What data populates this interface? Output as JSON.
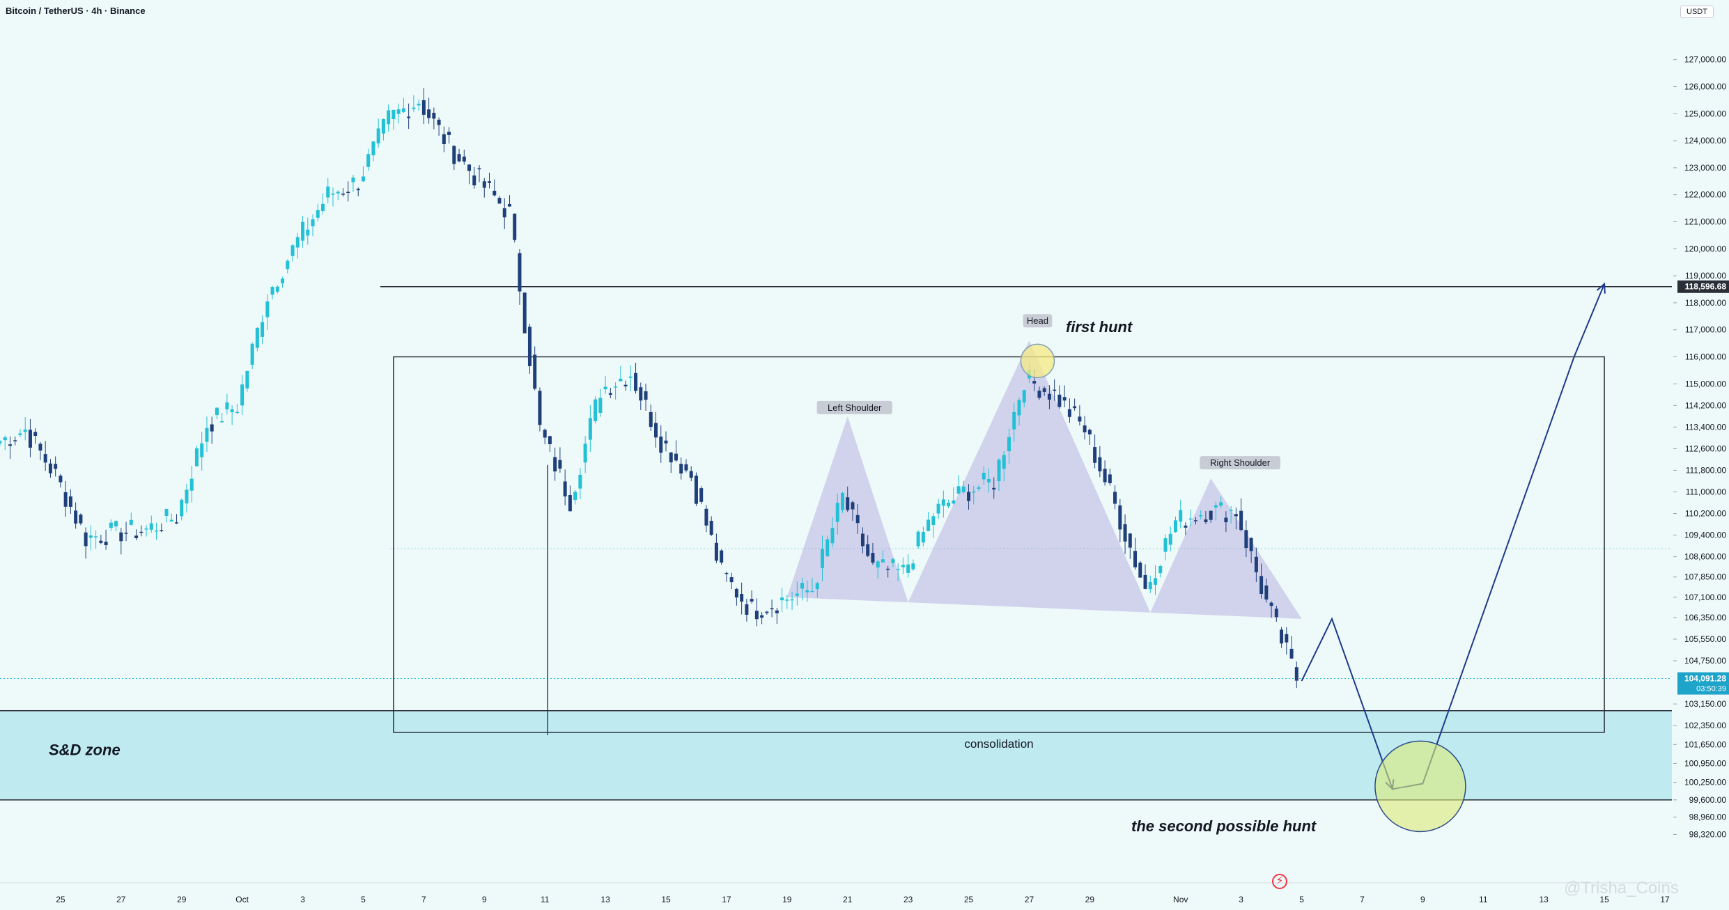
{
  "header": {
    "title": "Bitcoin / TetherUS · 4h · Binance",
    "currency": "USDT"
  },
  "watermark": "@Trisha_Coins",
  "chart_data": {
    "type": "candlestick",
    "title": "Bitcoin / TetherUS · 4h · Binance",
    "y_axis": {
      "range": [
        98320,
        127800
      ],
      "ticks": [
        127000,
        126000,
        125000,
        124000,
        123000,
        122000,
        121000,
        120000,
        119000,
        118000,
        117000,
        116000,
        115000,
        114200,
        113400,
        112600,
        111800,
        111000,
        110200,
        109400,
        108600,
        107850,
        107100,
        106350,
        105550,
        104750,
        103150,
        102350,
        101650,
        100950,
        100250,
        99600,
        98960,
        98320
      ],
      "tick_labels": [
        "127,000.00",
        "126,000.00",
        "125,000.00",
        "124,000.00",
        "123,000.00",
        "122,000.00",
        "121,000.00",
        "120,000.00",
        "119,000.00",
        "118,000.00",
        "117,000.00",
        "116,000.00",
        "115,000.00",
        "114,200.00",
        "113,400.00",
        "112,600.00",
        "111,800.00",
        "111,000.00",
        "110,200.00",
        "109,400.00",
        "108,600.00",
        "107,850.00",
        "107,100.00",
        "106,350.00",
        "105,550.00",
        "104,750.00",
        "103,150.00",
        "102,350.00",
        "101,650.00",
        "100,950.00",
        "100,250.00",
        "99,600.00",
        "98,960.00",
        "98,320.00"
      ]
    },
    "x_axis": {
      "range": [
        "2025-09-23",
        "2025-11-17"
      ],
      "ticks": [
        "2025-09-25",
        "2025-09-27",
        "2025-09-29",
        "2025-10-01",
        "2025-10-03",
        "2025-10-05",
        "2025-10-07",
        "2025-10-09",
        "2025-10-11",
        "2025-10-13",
        "2025-10-15",
        "2025-10-17",
        "2025-10-19",
        "2025-10-21",
        "2025-10-23",
        "2025-10-25",
        "2025-10-27",
        "2025-10-29",
        "2025-11-01",
        "2025-11-03",
        "2025-11-05",
        "2025-11-07",
        "2025-11-09",
        "2025-11-11",
        "2025-11-13",
        "2025-11-15",
        "2025-11-17"
      ],
      "tick_labels": [
        "25",
        "27",
        "29",
        "Oct",
        "3",
        "5",
        "7",
        "9",
        "11",
        "13",
        "15",
        "17",
        "19",
        "21",
        "23",
        "25",
        "27",
        "29",
        "Nov",
        "3",
        "5",
        "7",
        "9",
        "11",
        "13",
        "15",
        "17"
      ]
    },
    "price_path": [
      [
        "2025-09-23",
        112800
      ],
      [
        "2025-09-24",
        113300
      ],
      [
        "2025-09-25",
        111600
      ],
      [
        "2025-09-26",
        109300
      ],
      [
        "2025-09-27",
        109500
      ],
      [
        "2025-09-28",
        109600
      ],
      [
        "2025-09-29",
        110100
      ],
      [
        "2025-09-30",
        113500
      ],
      [
        "2025-10-01",
        114200
      ],
      [
        "2025-10-02",
        118300
      ],
      [
        "2025-10-03",
        120300
      ],
      [
        "2025-10-04",
        122000
      ],
      [
        "2025-10-05",
        122500
      ],
      [
        "2025-10-06",
        124800
      ],
      [
        "2025-10-07",
        125500
      ],
      [
        "2025-10-08",
        123800
      ],
      [
        "2025-10-09",
        122500
      ],
      [
        "2025-10-10",
        121300
      ],
      [
        "2025-10-11",
        113300
      ],
      [
        "2025-10-12",
        110700
      ],
      [
        "2025-10-13",
        114800
      ],
      [
        "2025-10-14",
        115400
      ],
      [
        "2025-10-15",
        112900
      ],
      [
        "2025-10-16",
        111600
      ],
      [
        "2025-10-17",
        108000
      ],
      [
        "2025-10-18",
        106600
      ],
      [
        "2025-10-19",
        107000
      ],
      [
        "2025-10-20",
        107400
      ],
      [
        "2025-10-21",
        110800
      ],
      [
        "2025-10-22",
        108200
      ],
      [
        "2025-10-23",
        108000
      ],
      [
        "2025-10-24",
        110200
      ],
      [
        "2025-10-25",
        111000
      ],
      [
        "2025-10-26",
        111400
      ],
      [
        "2025-10-27",
        115200
      ],
      [
        "2025-10-28",
        114600
      ],
      [
        "2025-10-29",
        113300
      ],
      [
        "2025-10-30",
        110500
      ],
      [
        "2025-10-31",
        107400
      ],
      [
        "2025-11-01",
        109900
      ],
      [
        "2025-11-02",
        110300
      ],
      [
        "2025-11-03",
        110300
      ],
      [
        "2025-11-04",
        106900
      ],
      [
        "2025-11-05",
        104091
      ]
    ],
    "series_colors": {
      "up": "#22c1d6",
      "down": "#1f3f7a"
    },
    "horizontal_line": {
      "price": 118596.68,
      "label": "118,596.68"
    },
    "current_price": {
      "price": 104091.28,
      "label": "104,091.28",
      "countdown": "03:50:39"
    },
    "consolidation_box": {
      "from": "2025-10-06",
      "to": "2025-11-15",
      "top": 116000,
      "bottom": 102100,
      "label": "consolidation"
    },
    "sd_zone": {
      "top": 102900,
      "bottom": 99600,
      "label": "S&D zone"
    },
    "pattern": {
      "points": [
        {
          "label": "Left Shoulder",
          "date": "2025-10-21",
          "price": 113800
        },
        {
          "label": "Head",
          "date": "2025-10-27",
          "price": 116600
        },
        {
          "label": "Right Shoulder",
          "date": "2025-11-02",
          "price": 111500
        }
      ],
      "neckline": [
        [
          "2025-10-19",
          107100
        ],
        [
          "2025-11-05",
          106300
        ]
      ]
    },
    "annotations": [
      {
        "text": "first hunt",
        "date": "2025-10-28",
        "price": 116700
      },
      {
        "text": "the second possible hunt",
        "date": "2025-10-31",
        "price": 100100
      }
    ],
    "projection": [
      [
        "2025-11-05",
        104000
      ],
      [
        "2025-11-06",
        106300
      ],
      [
        "2025-11-08",
        100000
      ],
      [
        "2025-11-09",
        100200
      ],
      [
        "2025-11-14",
        116000
      ],
      [
        "2025-11-15",
        118700
      ]
    ],
    "circles": [
      {
        "date": "2025-10-27",
        "price": 115900,
        "color": "#f3e98f"
      },
      {
        "date": "2025-11-08",
        "price": 100100,
        "color": "#dce97a"
      }
    ]
  }
}
